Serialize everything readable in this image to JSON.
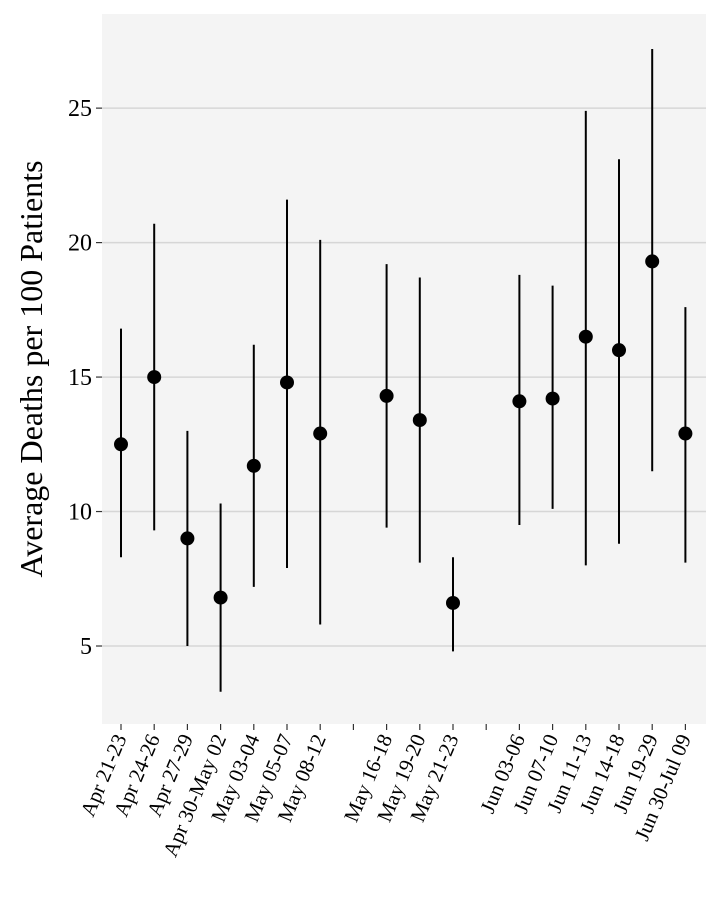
{
  "chart_data": {
    "type": "scatter",
    "title": "",
    "xlabel": "",
    "ylabel": "Average Deaths per 100 Patients",
    "ylim": [
      2.1,
      28.5
    ],
    "y_ticks": [
      5,
      10,
      15,
      20,
      25
    ],
    "grid": true,
    "legend": "none",
    "colors": {
      "panel": "#f4f4f4",
      "grid": "#d6d6d6",
      "mark": "#000000"
    },
    "x_slots": [
      "Apr 21-23",
      "Apr 24-26",
      "Apr 27-29",
      "Apr 30-May 02",
      "May 03-04",
      "May 05-07",
      "May 08-12",
      "",
      "May 16-18",
      "May 19-20",
      "May 21-23",
      "",
      "Jun 03-06",
      "Jun 07-10",
      "Jun 11-13",
      "Jun 14-18",
      "Jun 19-29",
      "Jun 30-Jul 09"
    ],
    "points": [
      {
        "label": "Apr 21-23",
        "y": 12.5,
        "lower": 8.3,
        "upper": 16.8
      },
      {
        "label": "Apr 24-26",
        "y": 15.0,
        "lower": 9.3,
        "upper": 20.7
      },
      {
        "label": "Apr 27-29",
        "y": 9.0,
        "lower": 5.0,
        "upper": 13.0
      },
      {
        "label": "Apr 30-May 02",
        "y": 6.8,
        "lower": 3.3,
        "upper": 10.3
      },
      {
        "label": "May 03-04",
        "y": 11.7,
        "lower": 7.2,
        "upper": 16.2
      },
      {
        "label": "May 05-07",
        "y": 14.8,
        "lower": 7.9,
        "upper": 21.6
      },
      {
        "label": "May 08-12",
        "y": 12.9,
        "lower": 5.8,
        "upper": 20.1
      },
      {
        "label": "May 16-18",
        "y": 14.3,
        "lower": 9.4,
        "upper": 19.2
      },
      {
        "label": "May 19-20",
        "y": 13.4,
        "lower": 8.1,
        "upper": 18.7
      },
      {
        "label": "May 21-23",
        "y": 6.6,
        "lower": 4.8,
        "upper": 8.3
      },
      {
        "label": "Jun 03-06",
        "y": 14.1,
        "lower": 9.5,
        "upper": 18.8
      },
      {
        "label": "Jun 07-10",
        "y": 14.2,
        "lower": 10.1,
        "upper": 18.4
      },
      {
        "label": "Jun 11-13",
        "y": 16.5,
        "lower": 8.0,
        "upper": 24.9
      },
      {
        "label": "Jun 14-18",
        "y": 16.0,
        "lower": 8.8,
        "upper": 23.1
      },
      {
        "label": "Jun 19-29",
        "y": 19.3,
        "lower": 11.5,
        "upper": 27.2
      },
      {
        "label": "Jun 30-Jul 09",
        "y": 12.9,
        "lower": 8.1,
        "upper": 17.6
      }
    ]
  }
}
